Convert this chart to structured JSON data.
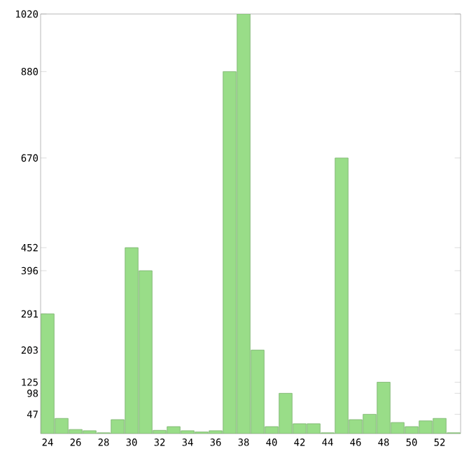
{
  "chart_data": {
    "type": "bar",
    "categories": [
      "24",
      null,
      "26",
      null,
      "28",
      null,
      "30",
      null,
      "32",
      null,
      "34",
      null,
      "36",
      null,
      "38",
      null,
      "40",
      null,
      "42",
      null,
      "44",
      null,
      "46",
      null,
      "48",
      null,
      "50",
      null,
      "52",
      null
    ],
    "values": [
      291,
      37,
      10,
      7,
      2,
      34,
      452,
      396,
      8,
      17,
      7,
      4,
      7,
      880,
      1020,
      203,
      17,
      98,
      24,
      24,
      2,
      670,
      34,
      47,
      125,
      27,
      17,
      31,
      37,
      2
    ],
    "color": "#99dd88",
    "ylim": [
      0,
      1020
    ],
    "yticks": [
      47,
      98,
      125,
      203,
      291,
      396,
      452,
      670,
      880,
      1020
    ],
    "grid": false
  }
}
